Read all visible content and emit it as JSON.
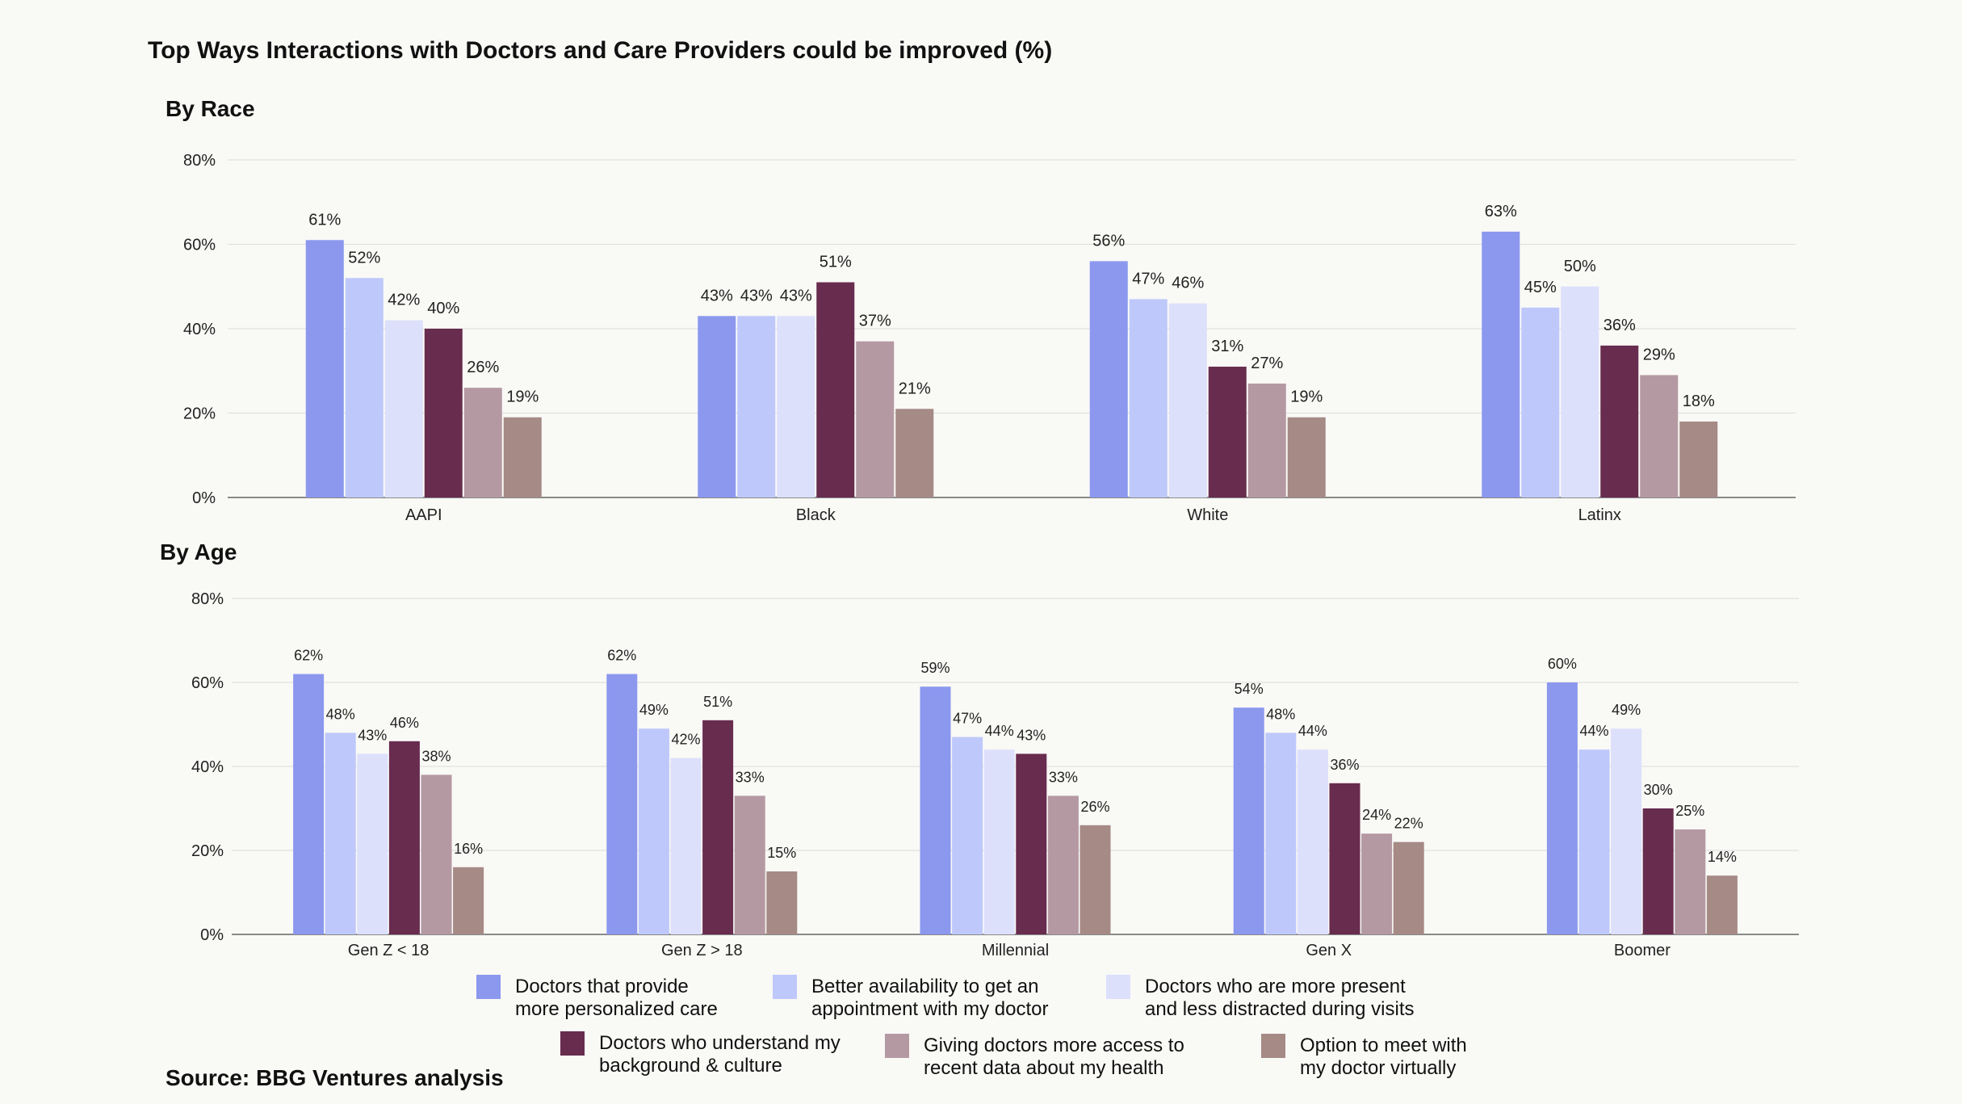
{
  "title": "Top Ways Interactions with Doctors and Care Providers could be improved (%)",
  "source": "Source: BBG Ventures analysis",
  "colors": [
    "#8b98ee",
    "#bec8fb",
    "#dde0fb",
    "#682c4f",
    "#b499a3",
    "#a58a85"
  ],
  "chart_data": [
    {
      "type": "bar",
      "title": "By Race",
      "ylim": [
        0,
        80
      ],
      "yticks": [
        "0%",
        "20%",
        "40%",
        "60%",
        "80%"
      ],
      "categories": [
        "AAPI",
        "Black",
        "White",
        "Latinx"
      ],
      "series": [
        {
          "name": "Doctors that provide more personalized care",
          "values": [
            61,
            43,
            56,
            63
          ]
        },
        {
          "name": "Better availability to get an appointment with my doctor",
          "values": [
            52,
            43,
            47,
            45
          ]
        },
        {
          "name": "Doctors who are more present and less distracted during visits",
          "values": [
            42,
            43,
            46,
            50
          ]
        },
        {
          "name": "Doctors who understand my background & culture",
          "values": [
            40,
            51,
            31,
            36
          ]
        },
        {
          "name": "Giving doctors more access to recent data about my health",
          "values": [
            26,
            37,
            27,
            29
          ]
        },
        {
          "name": "Option to meet with my doctor virtually",
          "values": [
            19,
            21,
            19,
            18
          ]
        }
      ]
    },
    {
      "type": "bar",
      "title": "By Age",
      "ylim": [
        0,
        80
      ],
      "yticks": [
        "0%",
        "20%",
        "40%",
        "60%",
        "80%"
      ],
      "categories": [
        "Gen Z < 18",
        "Gen Z > 18",
        "Millennial",
        "Gen X",
        "Boomer"
      ],
      "series": [
        {
          "name": "Doctors that provide more personalized care",
          "values": [
            62,
            62,
            59,
            54,
            60
          ]
        },
        {
          "name": "Better availability to get an appointment with my doctor",
          "values": [
            48,
            49,
            47,
            48,
            44
          ]
        },
        {
          "name": "Doctors who are more present and less distracted during visits",
          "values": [
            43,
            42,
            44,
            44,
            49
          ]
        },
        {
          "name": "Doctors who understand my background & culture",
          "values": [
            46,
            51,
            43,
            36,
            30
          ]
        },
        {
          "name": "Giving doctors more access to recent data about my health",
          "values": [
            38,
            33,
            33,
            24,
            25
          ]
        },
        {
          "name": "Option to meet with my doctor virtually",
          "values": [
            16,
            15,
            26,
            22,
            14
          ]
        }
      ]
    }
  ],
  "legend": [
    {
      "line1": "Doctors that provide",
      "line2": "more personalized care"
    },
    {
      "line1": "Better availability to get an",
      "line2": "appointment with my doctor"
    },
    {
      "line1": "Doctors who are more present",
      "line2": "and less distracted during visits"
    },
    {
      "line1": "Doctors who understand my",
      "line2": "background & culture"
    },
    {
      "line1": "Giving doctors more access to",
      "line2": "recent data about my health"
    },
    {
      "line1": "Option to meet with",
      "line2": "my doctor virtually"
    }
  ]
}
